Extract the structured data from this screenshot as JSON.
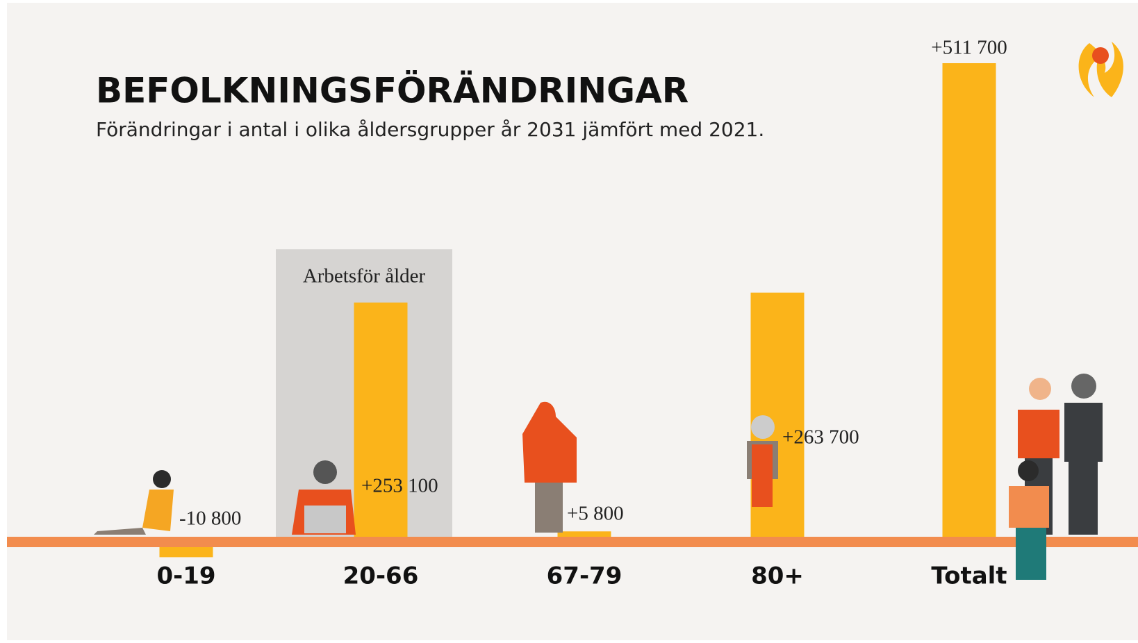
{
  "chart_data": {
    "type": "bar",
    "title": "BEFOLKNINGSFÖRÄNDRINGAR",
    "subtitle": "Förändringar i antal i olika åldersgrupper år 2031 jämfört med 2021.",
    "annotation": "Arbetsför ålder",
    "categories": [
      "0-19",
      "20-66",
      "67-79",
      "80+",
      "Totalt"
    ],
    "values": [
      -10800,
      253100,
      5800,
      263700,
      511700
    ],
    "value_labels": [
      "-10 800",
      "+253 100",
      "+5 800",
      "+263 700",
      "+511 700"
    ],
    "color": "#fbb41a"
  }
}
